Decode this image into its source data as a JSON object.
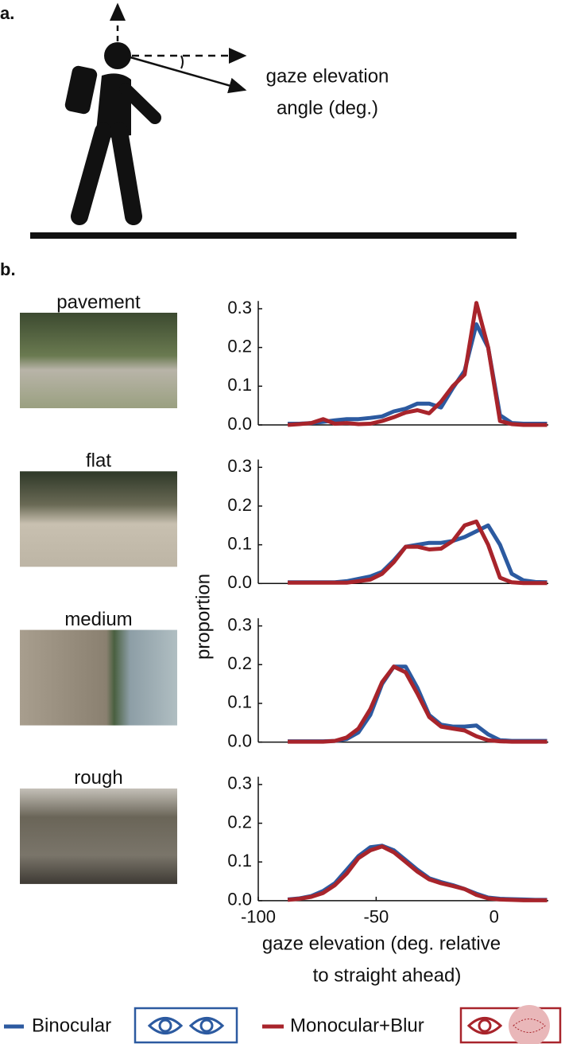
{
  "panel_a": {
    "label": "a.",
    "annotation": [
      "gaze elevation",
      "angle (deg.)"
    ]
  },
  "panel_b": {
    "label": "b."
  },
  "axis_labels": {
    "y": "proportion",
    "x": [
      "gaze elevation (deg. relative",
      "to straight ahead)"
    ]
  },
  "chart_data": [
    {
      "type": "line",
      "title": "pavement",
      "x": [
        -87.5,
        -82.5,
        -77.5,
        -72.5,
        -67.5,
        -62.5,
        -57.5,
        -52.5,
        -47.5,
        -42.5,
        -37.5,
        -32.5,
        -27.5,
        -22.5,
        -17.5,
        -12.5,
        -7.5,
        -2.5,
        2.5,
        7.5,
        12.5,
        17.5,
        22.5
      ],
      "xlim": [
        -100,
        23
      ],
      "ylim": [
        0,
        0.32
      ],
      "yticks": [
        {
          "value": 0,
          "label": "0.0"
        },
        0.1,
        0.2,
        0.3
      ],
      "series": [
        {
          "name": "Binocular",
          "color": "#2c5aa0",
          "values": [
            0.003,
            0.003,
            0.005,
            0.008,
            0.012,
            0.015,
            0.015,
            0.018,
            0.022,
            0.035,
            0.042,
            0.055,
            0.055,
            0.045,
            0.095,
            0.14,
            0.26,
            0.2,
            0.025,
            0.005,
            0.003,
            0.003,
            0.003
          ]
        },
        {
          "name": "Monocular+Blur",
          "color": "#a8242b",
          "values": [
            0,
            0.002,
            0.005,
            0.015,
            0.003,
            0.005,
            0.002,
            0.003,
            0.01,
            0.02,
            0.032,
            0.038,
            0.03,
            0.06,
            0.1,
            0.13,
            0.315,
            0.2,
            0.01,
            0.002,
            0,
            0,
            0
          ]
        }
      ]
    },
    {
      "type": "line",
      "title": "flat",
      "x": [
        -87.5,
        -82.5,
        -77.5,
        -72.5,
        -67.5,
        -62.5,
        -57.5,
        -52.5,
        -47.5,
        -42.5,
        -37.5,
        -32.5,
        -27.5,
        -22.5,
        -17.5,
        -12.5,
        -7.5,
        -2.5,
        2.5,
        7.5,
        12.5,
        17.5,
        22.5
      ],
      "xlim": [
        -100,
        23
      ],
      "ylim": [
        0,
        0.32
      ],
      "yticks": [
        {
          "value": 0,
          "label": "0.0"
        },
        0.1,
        0.2,
        0.3
      ],
      "series": [
        {
          "name": "Binocular",
          "color": "#2c5aa0",
          "values": [
            0.003,
            0.003,
            0.003,
            0.003,
            0.003,
            0.006,
            0.012,
            0.018,
            0.03,
            0.06,
            0.095,
            0.1,
            0.105,
            0.105,
            0.11,
            0.12,
            0.135,
            0.15,
            0.1,
            0.025,
            0.008,
            0.004,
            0.003
          ]
        },
        {
          "name": "Monocular+Blur",
          "color": "#a8242b",
          "values": [
            0.002,
            0.002,
            0.002,
            0.002,
            0.002,
            0.002,
            0.006,
            0.01,
            0.025,
            0.055,
            0.095,
            0.095,
            0.088,
            0.09,
            0.11,
            0.15,
            0.16,
            0.1,
            0.015,
            0.003,
            0.001,
            0.001,
            0.001
          ]
        }
      ]
    },
    {
      "type": "line",
      "title": "medium",
      "x": [
        -87.5,
        -82.5,
        -77.5,
        -72.5,
        -67.5,
        -62.5,
        -57.5,
        -52.5,
        -47.5,
        -42.5,
        -37.5,
        -32.5,
        -27.5,
        -22.5,
        -17.5,
        -12.5,
        -7.5,
        -2.5,
        2.5,
        7.5,
        12.5,
        17.5,
        22.5
      ],
      "xlim": [
        -100,
        23
      ],
      "ylim": [
        0,
        0.32
      ],
      "yticks": [
        {
          "value": 0,
          "label": "0.0"
        },
        0.1,
        0.2,
        0.3
      ],
      "series": [
        {
          "name": "Binocular",
          "color": "#2c5aa0",
          "values": [
            0.002,
            0.002,
            0.002,
            0.002,
            0.003,
            0.008,
            0.025,
            0.07,
            0.15,
            0.195,
            0.195,
            0.14,
            0.07,
            0.045,
            0.04,
            0.04,
            0.043,
            0.02,
            0.005,
            0.003,
            0.003,
            0.003,
            0.003
          ]
        },
        {
          "name": "Monocular+Blur",
          "color": "#a8242b",
          "values": [
            0.001,
            0.001,
            0.001,
            0.001,
            0.003,
            0.012,
            0.035,
            0.085,
            0.155,
            0.195,
            0.18,
            0.125,
            0.065,
            0.04,
            0.035,
            0.03,
            0.015,
            0.005,
            0.002,
            0.001,
            0.001,
            0.001,
            0.001
          ]
        }
      ]
    },
    {
      "type": "line",
      "title": "rough",
      "x": [
        -87.5,
        -82.5,
        -77.5,
        -72.5,
        -67.5,
        -62.5,
        -57.5,
        -52.5,
        -47.5,
        -42.5,
        -37.5,
        -32.5,
        -27.5,
        -22.5,
        -17.5,
        -12.5,
        -7.5,
        -2.5,
        2.5,
        7.5,
        12.5,
        17.5,
        22.5
      ],
      "xlim": [
        -100,
        23
      ],
      "ylim": [
        0,
        0.32
      ],
      "xticks": [
        -100,
        -50,
        0
      ],
      "yticks": [
        {
          "value": 0,
          "label": "0.0"
        },
        0.1,
        0.2,
        0.3
      ],
      "series": [
        {
          "name": "Binocular",
          "color": "#2c5aa0",
          "values": [
            0.003,
            0.006,
            0.012,
            0.025,
            0.045,
            0.08,
            0.115,
            0.138,
            0.142,
            0.13,
            0.105,
            0.08,
            0.058,
            0.048,
            0.04,
            0.03,
            0.018,
            0.008,
            0.005,
            0.004,
            0.003,
            0.002,
            0.002
          ]
        },
        {
          "name": "Monocular+Blur",
          "color": "#a8242b",
          "values": [
            0.002,
            0.005,
            0.01,
            0.02,
            0.04,
            0.07,
            0.11,
            0.13,
            0.14,
            0.125,
            0.1,
            0.075,
            0.055,
            0.045,
            0.038,
            0.03,
            0.015,
            0.006,
            0.003,
            0.002,
            0.001,
            0.001,
            0.001
          ]
        }
      ]
    }
  ]
}
